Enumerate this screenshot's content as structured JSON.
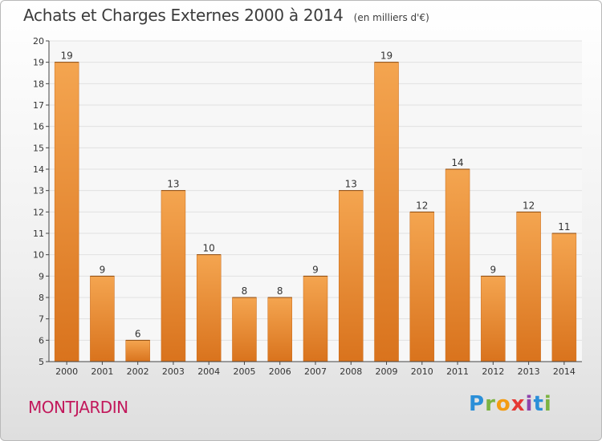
{
  "header": {
    "title": "Achats et Charges Externes 2000 à 2014",
    "subtitle": "(en milliers d'€)"
  },
  "footer": {
    "city": "MONTJARDIN",
    "logo_letters": [
      "P",
      "r",
      "o",
      "x",
      "i",
      "t",
      "i"
    ],
    "logo_colors": [
      "#2b8fd8",
      "#7cb342",
      "#f39c12",
      "#e53935",
      "#8e44ad",
      "#2b8fd8",
      "#7cb342"
    ]
  },
  "colors": {
    "bar_top": "#f4a550",
    "bar_bottom": "#d9731d",
    "grid": "#e2e2e2",
    "axis": "#444444"
  },
  "chart_data": {
    "type": "bar",
    "categories": [
      "2000",
      "2001",
      "2002",
      "2003",
      "2004",
      "2005",
      "2006",
      "2007",
      "2008",
      "2009",
      "2010",
      "2011",
      "2012",
      "2013",
      "2014"
    ],
    "values": [
      19,
      9,
      6,
      13,
      10,
      8,
      8,
      9,
      13,
      19,
      12,
      14,
      9,
      12,
      11
    ],
    "ylim": [
      5,
      20
    ],
    "yticks": [
      5,
      6,
      7,
      8,
      9,
      10,
      11,
      12,
      13,
      14,
      15,
      16,
      17,
      18,
      19,
      20
    ],
    "grid": true,
    "data_labels": true
  }
}
